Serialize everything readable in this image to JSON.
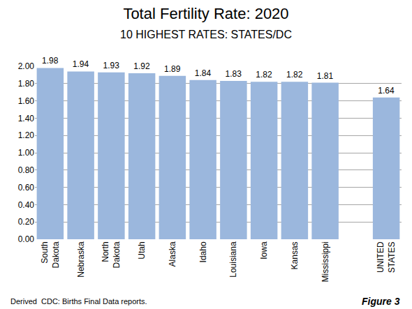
{
  "chart_data": {
    "type": "bar",
    "title": "Total Fertility Rate: 2020",
    "subtitle": "10 HIGHEST RATES: STATES/DC",
    "categories": [
      "South Dakota",
      "Nebraska",
      "North Dakota",
      "Utah",
      "Alaska",
      "Idaho",
      "Louisiana",
      "Iowa",
      "Kansas",
      "Mississippi",
      null,
      "UNITED STATES"
    ],
    "values": [
      1.98,
      1.94,
      1.93,
      1.92,
      1.89,
      1.84,
      1.83,
      1.82,
      1.82,
      1.81,
      null,
      1.64
    ],
    "color": "#9bb7dd",
    "ylim": [
      0,
      2
    ],
    "yticks": [
      {
        "value": 0,
        "label": "0.00"
      },
      {
        "value": 0.2,
        "label": "0.20"
      },
      {
        "value": 0.4,
        "label": "0.40"
      },
      {
        "value": 0.6,
        "label": "0.60"
      },
      {
        "value": 0.8,
        "label": "0.80"
      },
      {
        "value": 1,
        "label": "1.00"
      },
      {
        "value": 1.2,
        "label": "1.20"
      },
      {
        "value": 1.4,
        "label": "1.40"
      },
      {
        "value": 1.6,
        "label": "1.60"
      },
      {
        "value": 1.8,
        "label": "1.80"
      },
      {
        "value": 2,
        "label": "2.00"
      }
    ],
    "grid": true,
    "data_labels": true,
    "annotations": [
      "Derived  CDC: Births Final Data reports.",
      "Figure 3"
    ]
  }
}
